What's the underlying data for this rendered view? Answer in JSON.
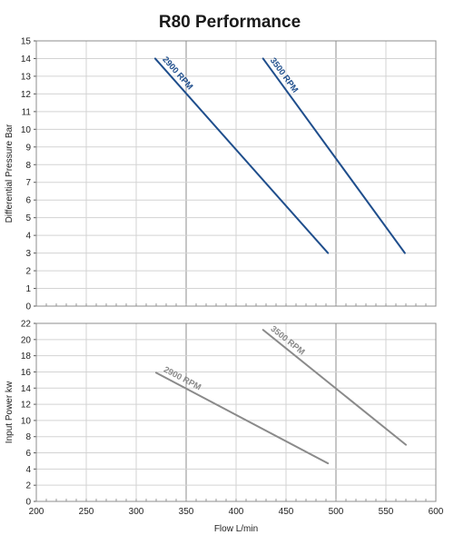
{
  "chart_data": {
    "title": "R80 Performance",
    "x_axis": {
      "label": "Flow L/min",
      "range": [
        200,
        600
      ],
      "ticks": [
        200,
        250,
        300,
        350,
        400,
        450,
        500,
        550,
        600
      ],
      "major_gridlines": [
        350,
        500
      ],
      "minor_step": 10
    },
    "panels": [
      {
        "type": "line",
        "ylabel": "Differential Pressure Bar",
        "ylim": [
          0,
          15
        ],
        "yticks": [
          0,
          1,
          2,
          3,
          4,
          5,
          6,
          7,
          8,
          9,
          10,
          11,
          12,
          13,
          14,
          15
        ],
        "color": "#1f4e8c",
        "series": [
          {
            "name": "2900 RPM",
            "points": [
              [
                319,
                14
              ],
              [
                492,
                3
              ]
            ]
          },
          {
            "name": "3500 RPM",
            "points": [
              [
                427,
                14
              ],
              [
                569,
                3
              ]
            ]
          }
        ]
      },
      {
        "type": "line",
        "ylabel": "Input Power kw",
        "ylim": [
          0,
          22
        ],
        "yticks": [
          0,
          2,
          4,
          6,
          8,
          10,
          12,
          14,
          16,
          18,
          20,
          22
        ],
        "color": "#8a8a8a",
        "series": [
          {
            "name": "2900 RPM",
            "points": [
              [
                320,
                15.9
              ],
              [
                492,
                4.7
              ]
            ]
          },
          {
            "name": "3500 RPM",
            "points": [
              [
                427,
                21.2
              ],
              [
                570,
                7.0
              ]
            ]
          }
        ]
      }
    ]
  }
}
